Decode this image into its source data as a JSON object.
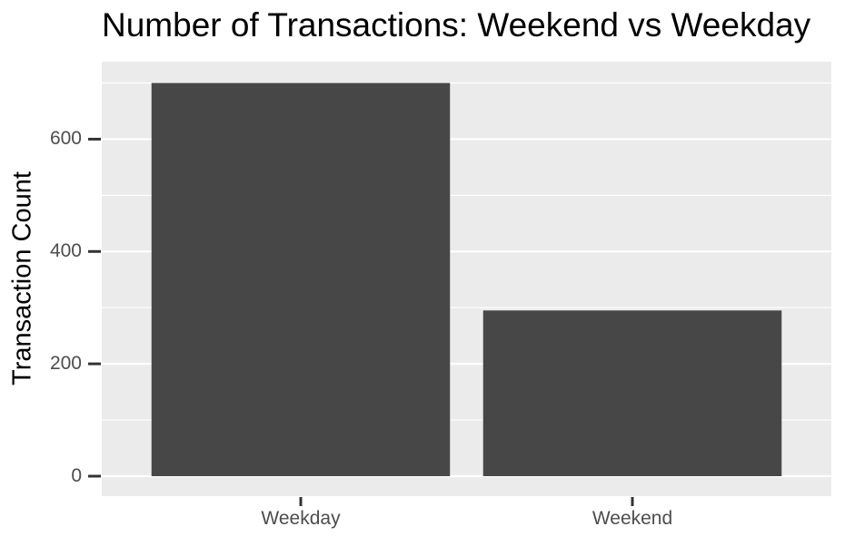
{
  "chart_data": {
    "type": "bar",
    "title": "Number of Transactions: Weekend vs Weekday",
    "ylabel": "Transaction Count",
    "xlabel": "",
    "categories": [
      "Weekday",
      "Weekend"
    ],
    "values": [
      700,
      295
    ],
    "yticks": [
      0,
      200,
      400,
      600
    ],
    "minor_yticks": [
      100,
      300,
      500,
      700
    ],
    "ylim": [
      0,
      734
    ],
    "grid": "major-and-minor",
    "legend": "none",
    "style": "ggplot2",
    "colors": {
      "bar_fill": "#474747",
      "panel_bg": "#EBEBEB",
      "grid_major": "#FFFFFF",
      "grid_minor": "#FFFFFF",
      "tick_mark": "#333333",
      "tick_text": "#4D4D4D",
      "title_text": "#000000",
      "axis_title_text": "#000000",
      "page_bg": "#FFFFFF"
    }
  }
}
